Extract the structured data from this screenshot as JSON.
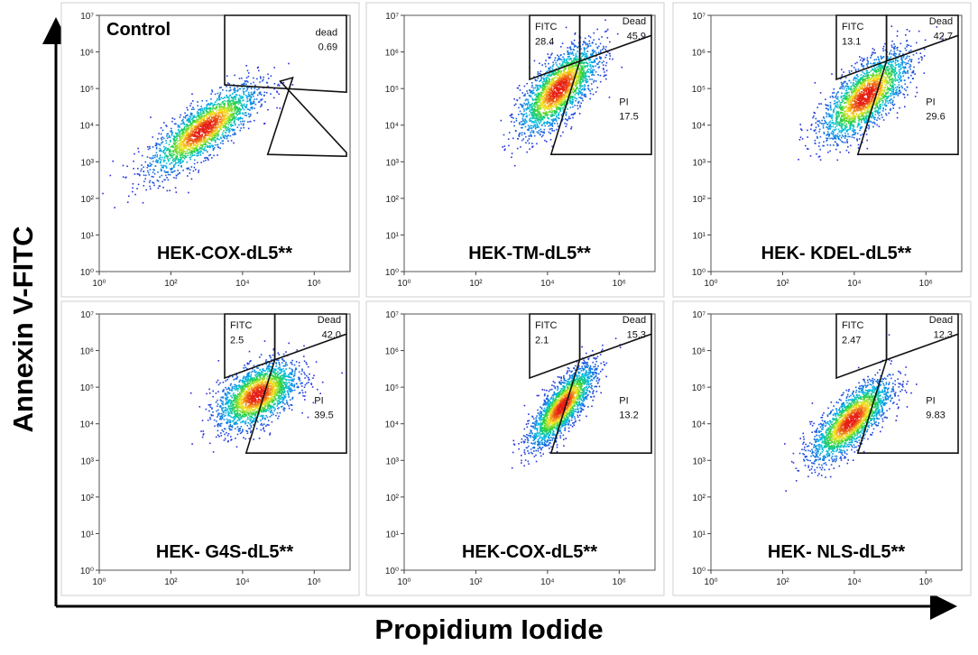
{
  "figure": {
    "ylabel": "Annexin V-FITC",
    "xlabel": "Propidium Iodide",
    "colors": {
      "axis": "#000000",
      "gate": "#111111",
      "frame": "#cfcfcf"
    }
  },
  "chart_data": [
    {
      "type": "scatter",
      "title": "HEK-COX-dL5**",
      "tag": "Control",
      "xscale": "log",
      "yscale": "log",
      "xlim": [
        1,
        10000000
      ],
      "ylim": [
        1,
        10000000
      ],
      "x_ticks": [
        "10⁰",
        "10²",
        "10⁴",
        "10⁶"
      ],
      "y_ticks": [
        "10⁰",
        "10¹",
        "10²",
        "10³",
        "10⁴",
        "10⁵",
        "10⁶",
        "10⁷"
      ],
      "gates": [
        {
          "label": "dead",
          "value": "0.69"
        }
      ],
      "population": {
        "x_center_log": 2.9,
        "y_center_log": 3.9,
        "x_spread_log": 0.75,
        "y_spread_log": 0.6,
        "correlation": 0.8
      }
    },
    {
      "type": "scatter",
      "title": "HEK-TM-dL5**",
      "xscale": "log",
      "yscale": "log",
      "xlim": [
        1,
        10000000
      ],
      "ylim": [
        1,
        10000000
      ],
      "x_ticks": [
        "10⁰",
        "10²",
        "10⁴",
        "10⁶"
      ],
      "y_ticks": [
        "10⁰",
        "10¹",
        "10²",
        "10³",
        "10⁴",
        "10⁵",
        "10⁶",
        "10⁷"
      ],
      "gates": [
        {
          "label": "FITC",
          "value": "28.4"
        },
        {
          "label": "Dead",
          "value": "45.9"
        },
        {
          "label": "PI",
          "value": "17.5"
        }
      ],
      "population": {
        "x_center_log": 4.3,
        "y_center_log": 5.0,
        "x_spread_log": 0.55,
        "y_spread_log": 0.6,
        "correlation": 0.7
      }
    },
    {
      "type": "scatter",
      "title": "HEK- KDEL-dL5**",
      "xscale": "log",
      "yscale": "log",
      "xlim": [
        1,
        10000000
      ],
      "ylim": [
        1,
        10000000
      ],
      "x_ticks": [
        "10⁰",
        "10²",
        "10⁴",
        "10⁶"
      ],
      "y_ticks": [
        "10⁰",
        "10¹",
        "10²",
        "10³",
        "10⁴",
        "10⁵",
        "10⁶",
        "10⁷"
      ],
      "gates": [
        {
          "label": "FITC",
          "value": "13.1"
        },
        {
          "label": "Dead",
          "value": "42.7"
        },
        {
          "label": "PI",
          "value": "29.6"
        }
      ],
      "population": {
        "x_center_log": 4.3,
        "y_center_log": 4.8,
        "x_spread_log": 0.6,
        "y_spread_log": 0.6,
        "correlation": 0.7
      }
    },
    {
      "type": "scatter",
      "title": "HEK- G4S-dL5**",
      "xscale": "log",
      "yscale": "log",
      "xlim": [
        1,
        10000000
      ],
      "ylim": [
        1,
        10000000
      ],
      "x_ticks": [
        "10⁰",
        "10²",
        "10⁴",
        "10⁶"
      ],
      "y_ticks": [
        "10⁰",
        "10¹",
        "10²",
        "10³",
        "10⁴",
        "10⁵",
        "10⁶",
        "10⁷"
      ],
      "gates": [
        {
          "label": "FITC",
          "value": "2.5"
        },
        {
          "label": "Dead",
          "value": "42.0"
        },
        {
          "label": "PI",
          "value": "39.5"
        }
      ],
      "population": {
        "x_center_log": 4.4,
        "y_center_log": 4.8,
        "x_spread_log": 0.55,
        "y_spread_log": 0.45,
        "correlation": 0.5
      }
    },
    {
      "type": "scatter",
      "title": "HEK-COX-dL5**",
      "xscale": "log",
      "yscale": "log",
      "xlim": [
        1,
        10000000
      ],
      "ylim": [
        1,
        10000000
      ],
      "x_ticks": [
        "10⁰",
        "10²",
        "10⁴",
        "10⁶"
      ],
      "y_ticks": [
        "10⁰",
        "10¹",
        "10²",
        "10³",
        "10⁴",
        "10⁵",
        "10⁶",
        "10⁷"
      ],
      "gates": [
        {
          "label": "FITC",
          "value": "2.1"
        },
        {
          "label": "Dead",
          "value": "15.3"
        },
        {
          "label": "PI",
          "value": "13.2"
        }
      ],
      "population": {
        "x_center_log": 4.4,
        "y_center_log": 4.5,
        "x_spread_log": 0.45,
        "y_spread_log": 0.55,
        "correlation": 0.8
      }
    },
    {
      "type": "scatter",
      "title": "HEK- NLS-dL5**",
      "xscale": "log",
      "yscale": "log",
      "xlim": [
        1,
        10000000
      ],
      "ylim": [
        1,
        10000000
      ],
      "x_ticks": [
        "10⁰",
        "10²",
        "10⁴",
        "10⁶"
      ],
      "y_ticks": [
        "10⁰",
        "10¹",
        "10²",
        "10³",
        "10⁴",
        "10⁵",
        "10⁶",
        "10⁷"
      ],
      "gates": [
        {
          "label": "FITC",
          "value": "2.47"
        },
        {
          "label": "Dead",
          "value": "12.3"
        },
        {
          "label": "PI",
          "value": "9.83"
        }
      ],
      "population": {
        "x_center_log": 3.9,
        "y_center_log": 4.1,
        "x_spread_log": 0.55,
        "y_spread_log": 0.55,
        "correlation": 0.75
      }
    }
  ]
}
